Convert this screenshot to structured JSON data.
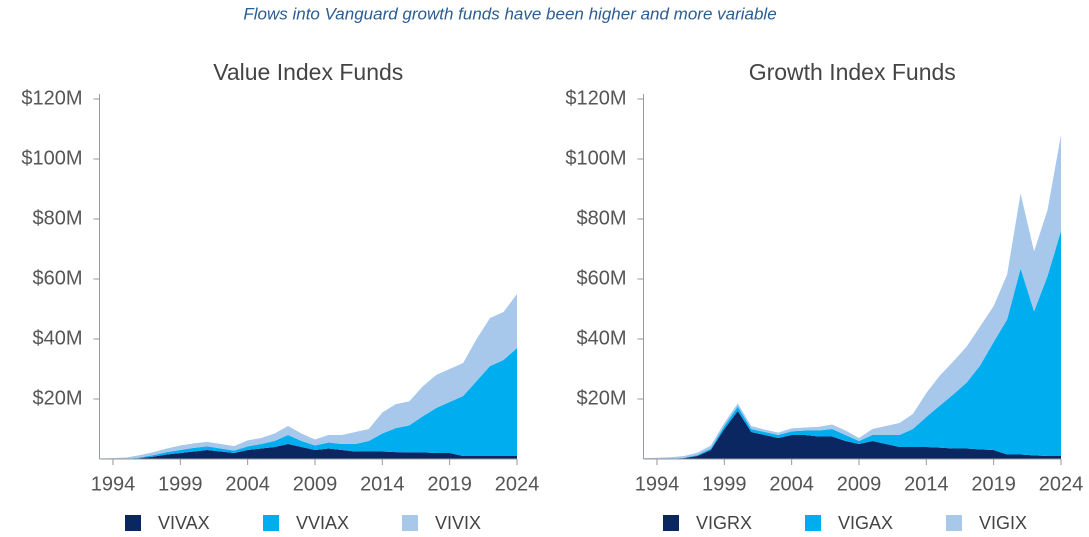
{
  "title": "Flows into Vanguard growth funds have been higher and more variable",
  "chart_data": [
    {
      "type": "area",
      "title": "Value Index Funds",
      "x": [
        1993,
        1994,
        1995,
        1996,
        1997,
        1998,
        1999,
        2000,
        2001,
        2002,
        2003,
        2004,
        2005,
        2006,
        2007,
        2008,
        2009,
        2010,
        2011,
        2012,
        2013,
        2014,
        2015,
        2016,
        2017,
        2018,
        2019,
        2020,
        2021,
        2022,
        2023,
        2024
      ],
      "series": [
        {
          "name": "VIVAX",
          "color": "#0b2762",
          "values": [
            0,
            0,
            0,
            0.3,
            0.8,
            1.5,
            2,
            2.5,
            3,
            2.5,
            2,
            3,
            3.5,
            4,
            5,
            4,
            3,
            3.5,
            3,
            2.5,
            2.5,
            2.5,
            2.3,
            2.2,
            2.2,
            2,
            2,
            1,
            1,
            1,
            1,
            1
          ]
        },
        {
          "name": "VVIAX",
          "color": "#00aeef",
          "values": [
            0,
            0,
            0,
            0.2,
            0.5,
            0.8,
            1,
            1.2,
            1.2,
            1,
            0.8,
            1.2,
            1.5,
            2,
            3,
            2,
            1.5,
            2,
            2,
            2.5,
            3.5,
            6,
            8,
            9,
            12,
            15,
            17,
            20,
            25,
            30,
            32,
            36
          ]
        },
        {
          "name": "VIVIX",
          "color": "#a7c7eb",
          "values": [
            0.2,
            0.3,
            0.5,
            0.8,
            1,
            1.2,
            1.5,
            1.5,
            1.5,
            1.5,
            1.5,
            2,
            2,
            2.5,
            3,
            2.5,
            2,
            2.5,
            3,
            4,
            4,
            7,
            8,
            8,
            10,
            11,
            11,
            11,
            14,
            16,
            16,
            18
          ]
        }
      ],
      "xlim": [
        1993,
        2024
      ],
      "xticks": [
        1994,
        1999,
        2004,
        2009,
        2014,
        2019,
        2024
      ],
      "ylim": [
        0,
        120
      ],
      "yticks": [
        {
          "value": 20,
          "label": "$20M"
        },
        {
          "value": 40,
          "label": "$40M"
        },
        {
          "value": 60,
          "label": "$60M"
        },
        {
          "value": 80,
          "label": "$80M"
        },
        {
          "value": 100,
          "label": "$100M"
        },
        {
          "value": 120,
          "label": "$120M"
        }
      ]
    },
    {
      "type": "area",
      "title": "Growth Index Funds",
      "x": [
        1993,
        1994,
        1995,
        1996,
        1997,
        1998,
        1999,
        2000,
        2001,
        2002,
        2003,
        2004,
        2005,
        2006,
        2007,
        2008,
        2009,
        2010,
        2011,
        2012,
        2013,
        2014,
        2015,
        2016,
        2017,
        2018,
        2019,
        2020,
        2021,
        2022,
        2023,
        2024
      ],
      "series": [
        {
          "name": "VIGRX",
          "color": "#0b2762",
          "values": [
            0,
            0,
            0.1,
            0.3,
            1,
            3,
            10,
            16,
            9,
            8,
            7,
            8,
            8,
            7.5,
            7.5,
            6,
            5,
            6,
            5,
            4,
            4,
            4,
            3.8,
            3.5,
            3.5,
            3.2,
            3,
            1.5,
            1.5,
            1.2,
            1,
            1
          ]
        },
        {
          "name": "VIGAX",
          "color": "#00aeef",
          "values": [
            0,
            0,
            0,
            0.1,
            0.3,
            0.5,
            1,
            1.5,
            1,
            1,
            1,
            1.2,
            1.5,
            2,
            2.5,
            2,
            1,
            2,
            3,
            4,
            6,
            10,
            14,
            18,
            22,
            28,
            36,
            45,
            62,
            48,
            60,
            75
          ]
        },
        {
          "name": "VIGIX",
          "color": "#a7c7eb",
          "values": [
            0.3,
            0.4,
            0.5,
            0.6,
            0.8,
            1,
            1,
            1,
            1,
            0.8,
            0.8,
            1,
            1,
            1.2,
            1.5,
            1.5,
            1,
            2,
            3,
            4,
            5,
            8,
            10,
            11,
            12,
            13,
            12,
            15,
            25,
            20,
            22,
            32
          ]
        }
      ],
      "xlim": [
        1993,
        2024
      ],
      "xticks": [
        1994,
        1999,
        2004,
        2009,
        2014,
        2019,
        2024
      ],
      "ylim": [
        0,
        120
      ],
      "yticks": [
        {
          "value": 20,
          "label": "$20M"
        },
        {
          "value": 40,
          "label": "$40M"
        },
        {
          "value": 60,
          "label": "$60M"
        },
        {
          "value": 80,
          "label": "$80M"
        },
        {
          "value": 100,
          "label": "$100M"
        },
        {
          "value": 120,
          "label": "$120M"
        }
      ]
    }
  ]
}
